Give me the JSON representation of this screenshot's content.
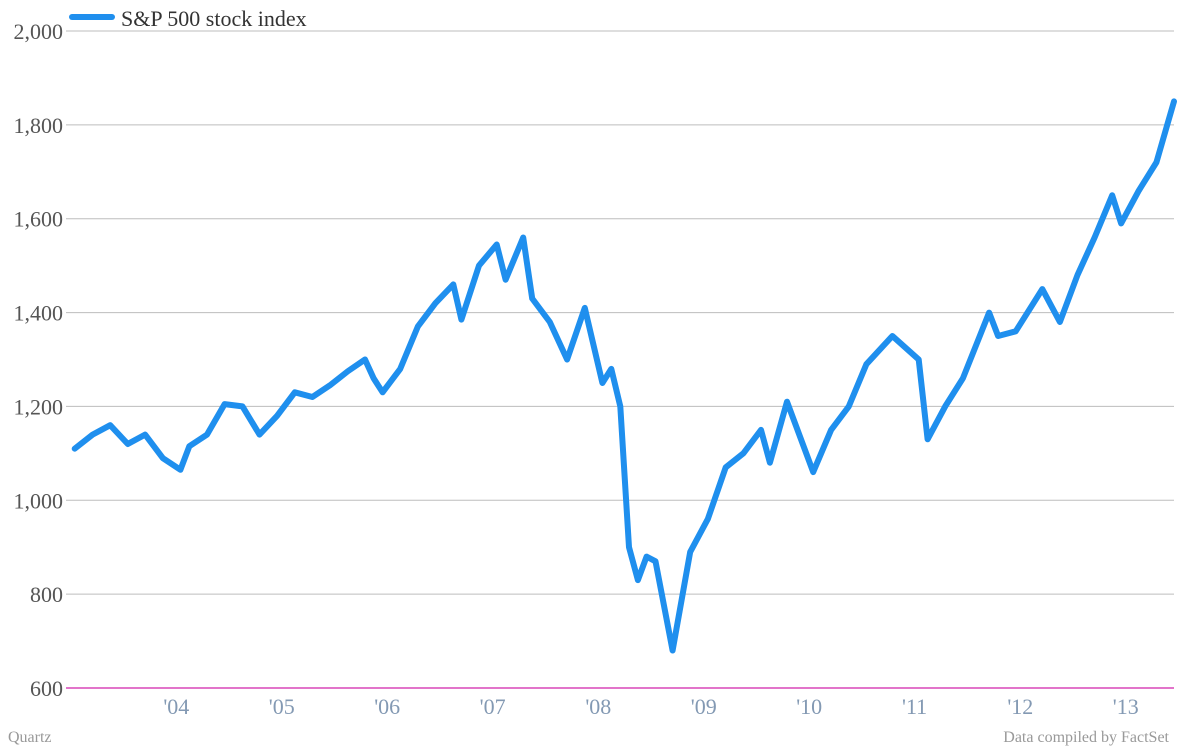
{
  "chart_data": {
    "type": "line",
    "series": [
      {
        "name": "S&P 500 stock index",
        "color": "#1f8fee",
        "x": [
          "2003-07",
          "2003-09",
          "2003-11",
          "2004-01",
          "2004-03",
          "2004-05",
          "2004-07",
          "2004-08",
          "2004-10",
          "2004-12",
          "2005-02",
          "2005-04",
          "2005-06",
          "2005-08",
          "2005-10",
          "2005-12",
          "2006-02",
          "2006-04",
          "2006-05",
          "2006-06",
          "2006-08",
          "2006-10",
          "2006-12",
          "2007-02",
          "2007-03",
          "2007-05",
          "2007-07",
          "2007-08",
          "2007-10",
          "2007-11",
          "2008-01",
          "2008-03",
          "2008-05",
          "2008-07",
          "2008-08",
          "2008-09",
          "2008-10",
          "2008-11",
          "2008-12",
          "2009-01",
          "2009-03",
          "2009-05",
          "2009-07",
          "2009-09",
          "2009-11",
          "2010-01",
          "2010-02",
          "2010-04",
          "2010-07",
          "2010-09",
          "2010-11",
          "2011-01",
          "2011-04",
          "2011-07",
          "2011-08",
          "2011-10",
          "2011-12",
          "2012-03",
          "2012-04",
          "2012-06",
          "2012-09",
          "2012-11",
          "2013-01",
          "2013-03",
          "2013-05",
          "2013-06",
          "2013-08",
          "2013-10",
          "2013-12"
        ],
        "values": [
          1110,
          1140,
          1160,
          1120,
          1140,
          1090,
          1065,
          1115,
          1140,
          1205,
          1200,
          1140,
          1180,
          1230,
          1220,
          1245,
          1275,
          1300,
          1260,
          1230,
          1280,
          1370,
          1420,
          1460,
          1385,
          1500,
          1545,
          1470,
          1560,
          1430,
          1380,
          1300,
          1410,
          1250,
          1280,
          1200,
          900,
          830,
          880,
          870,
          680,
          890,
          960,
          1070,
          1100,
          1150,
          1080,
          1210,
          1060,
          1150,
          1200,
          1290,
          1350,
          1300,
          1130,
          1200,
          1260,
          1400,
          1350,
          1360,
          1450,
          1380,
          1480,
          1560,
          1650,
          1590,
          1660,
          1720,
          1850
        ]
      }
    ],
    "ylim": [
      600,
      2000
    ],
    "yticks": [
      600,
      800,
      1000,
      1200,
      1400,
      1600,
      1800,
      2000
    ],
    "ytick_labels": [
      "600",
      "800",
      "1,000",
      "1,200",
      "1,400",
      "1,600",
      "1,800",
      "2,000"
    ],
    "xlim": [
      "2003-06-15",
      "2013-12-15"
    ],
    "xticks": [
      "2004-07-01",
      "2005-07-01",
      "2006-07-01",
      "2007-07-01",
      "2008-07-01",
      "2009-07-01",
      "2010-07-01",
      "2011-07-01",
      "2012-07-01",
      "2013-07-01"
    ],
    "xtick_labels": [
      "'04",
      "'05",
      "'06",
      "'07",
      "'08",
      "'09",
      "'10",
      "'11",
      "'12",
      "'13"
    ],
    "grid": true,
    "legend": "top-left",
    "baseline_color": "#d946b8"
  },
  "footer": {
    "source_left": "Quartz",
    "source_right": "Data compiled by FactSet"
  }
}
